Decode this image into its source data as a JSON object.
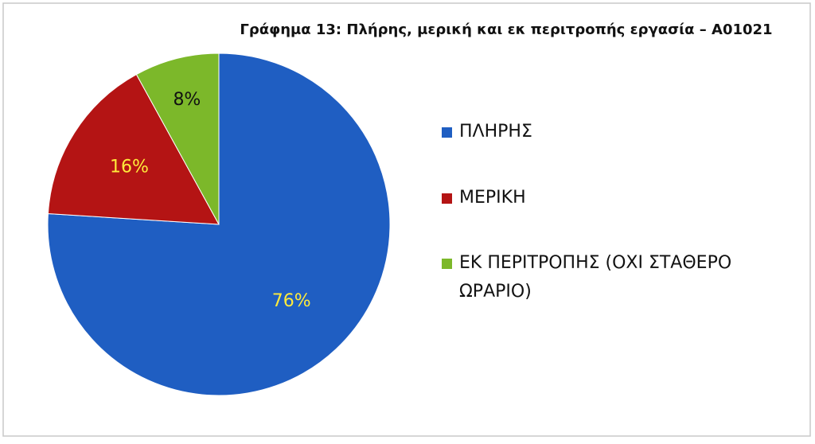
{
  "chart_data": {
    "type": "pie",
    "title": "Γράφημα 13: Πλήρης, μερική και εκ περιτροπής εργασία – Α01021",
    "categories": [
      "ΠΛΗΡΗΣ",
      "ΜΕΡΙΚΗ",
      "ΕΚ ΠΕΡΙΤΡΟΠΗΣ (ΟΧΙ ΣΤΑΘΕΡΟ ΩΡΑΡΙΟ)"
    ],
    "values": [
      76,
      16,
      8
    ],
    "value_labels": [
      "76%",
      "16%",
      "8%"
    ],
    "colors": [
      "#1f5ec2",
      "#b41414",
      "#7cb82a"
    ],
    "label_colors": [
      "#ffeb3b",
      "#ffeb3b",
      "#111111"
    ],
    "legend": "right"
  }
}
